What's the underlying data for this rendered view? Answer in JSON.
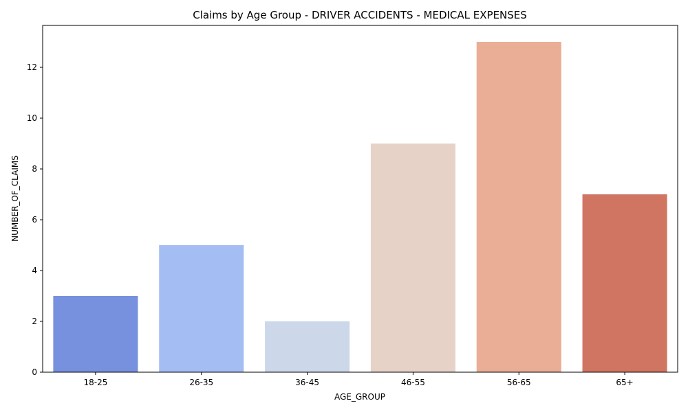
{
  "chart_data": {
    "type": "bar",
    "title": "Claims by Age Group - DRIVER ACCIDENTS - MEDICAL EXPENSES",
    "xlabel": "AGE_GROUP",
    "ylabel": "NUMBER_OF_CLAIMS",
    "categories": [
      "18-25",
      "26-35",
      "36-45",
      "46-55",
      "56-65",
      "65+"
    ],
    "values": [
      3,
      5,
      2,
      9,
      13,
      7
    ],
    "colors": [
      "#7891de",
      "#a4bef3",
      "#ccd8ea",
      "#e7d2c8",
      "#eaad96",
      "#cf7562"
    ],
    "ylim": [
      0,
      13.65
    ],
    "yticks": [
      0,
      2,
      4,
      6,
      8,
      10,
      12
    ],
    "grid": false,
    "legend": "none"
  }
}
